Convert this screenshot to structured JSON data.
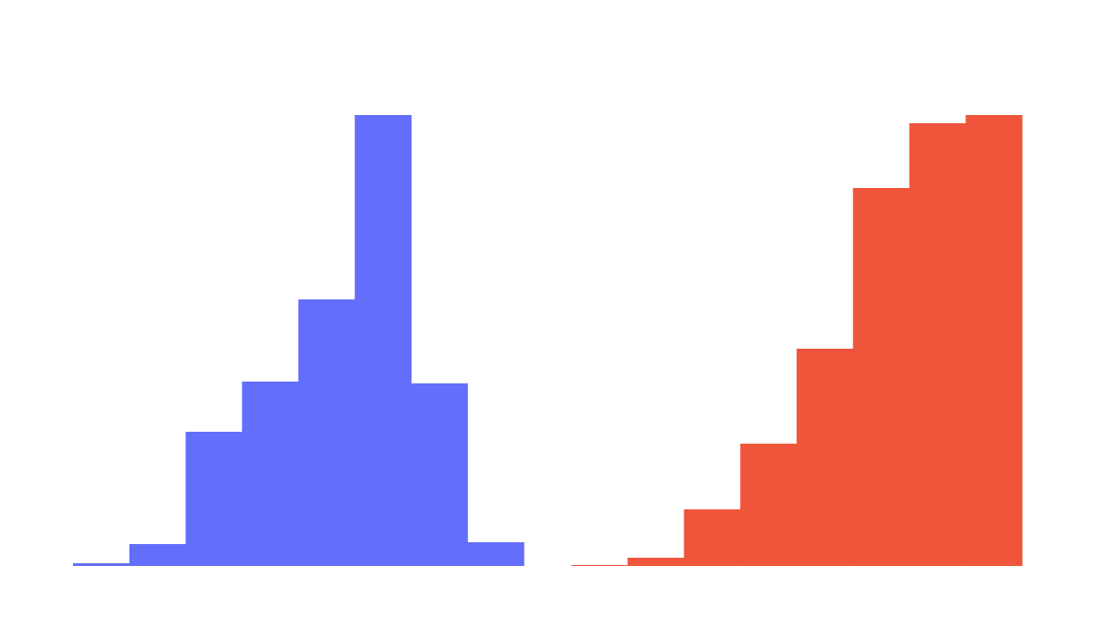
{
  "chart_data": [
    {
      "type": "histogram",
      "color": "#636efa",
      "values": [
        3,
        24,
        147,
        202,
        292,
        494,
        200,
        26
      ]
    },
    {
      "type": "histogram",
      "color": "#ef553b",
      "values": [
        1,
        9,
        62,
        134,
        238,
        414,
        485,
        494
      ]
    }
  ]
}
